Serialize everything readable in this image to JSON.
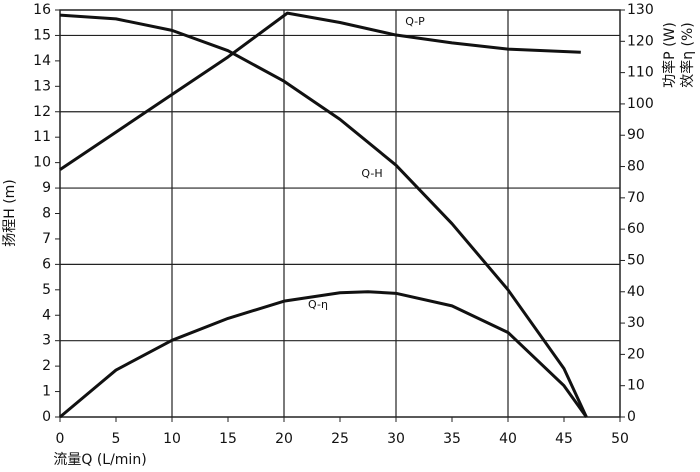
{
  "chart_data": {
    "type": "line",
    "x_label": "流量Q (L/min)",
    "y_label": "扬程H (m)",
    "y2_labels": [
      "功率P (W)",
      "效率η (%)"
    ],
    "xlim": [
      0,
      50
    ],
    "xticks": [
      0,
      5,
      10,
      15,
      20,
      25,
      30,
      35,
      40,
      45,
      50
    ],
    "ylim": [
      0,
      16
    ],
    "yticks": [
      0,
      1,
      2,
      3,
      4,
      5,
      6,
      7,
      8,
      9,
      10,
      11,
      12,
      13,
      14,
      15,
      16
    ],
    "y2lim": [
      0,
      130
    ],
    "y2ticks": [
      0,
      10,
      20,
      30,
      40,
      50,
      60,
      70,
      80,
      90,
      100,
      110,
      120,
      130
    ],
    "x_gridlines": [
      10,
      20,
      30,
      40
    ],
    "y_gridlines": [
      3,
      6,
      9,
      12,
      15
    ],
    "series": [
      {
        "name": "Q-H",
        "color": "#111111",
        "axis": "y",
        "x": [
          0,
          5,
          10,
          15,
          20,
          25,
          30,
          35,
          40,
          45,
          47
        ],
        "values": [
          15.8,
          15.65,
          15.2,
          14.4,
          13.2,
          11.7,
          9.9,
          7.6,
          5.0,
          1.9,
          0
        ]
      },
      {
        "name": "Q-P",
        "color": "#111111",
        "axis": "y2",
        "x": [
          0,
          5,
          10,
          15,
          20.3,
          25,
          30,
          35,
          40,
          46.5
        ],
        "values": [
          79,
          91,
          103,
          115,
          129,
          126,
          122,
          119.5,
          117.5,
          116.5
        ]
      },
      {
        "name": "Q-η",
        "color": "#111111",
        "axis": "y2",
        "x": [
          0,
          5,
          10,
          15,
          20,
          25,
          27.5,
          30,
          35,
          40,
          45,
          47
        ],
        "values": [
          0,
          15,
          24.5,
          31.5,
          37,
          39.7,
          40,
          39.5,
          35.5,
          27,
          10,
          0
        ]
      }
    ]
  }
}
